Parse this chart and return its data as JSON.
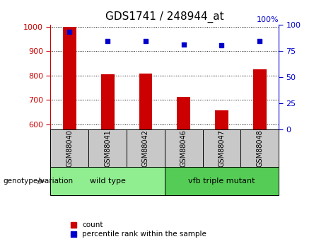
{
  "title": "GDS1741 / 248944_at",
  "categories": [
    "GSM88040",
    "GSM88041",
    "GSM88042",
    "GSM88046",
    "GSM88047",
    "GSM88048"
  ],
  "bar_values": [
    1000,
    805,
    808,
    714,
    657,
    826
  ],
  "scatter_values": [
    93,
    84,
    84,
    81,
    80,
    84
  ],
  "ylim_left": [
    580,
    1010
  ],
  "ylim_right": [
    0,
    100
  ],
  "yticks_left": [
    600,
    700,
    800,
    900,
    1000
  ],
  "yticks_right": [
    0,
    25,
    50,
    75,
    100
  ],
  "bar_color": "#cc0000",
  "scatter_color": "#0000cc",
  "label_box_color": "#c8c8c8",
  "left_tick_color": "#cc0000",
  "right_tick_color": "#0000cc",
  "legend_count_label": "count",
  "legend_pct_label": "percentile rank within the sample",
  "xlabel_label": "genotype/variation",
  "group1_name": "wild type",
  "group2_name": "vfb triple mutant",
  "group1_color": "#90ee90",
  "group2_color": "#55cc55",
  "title_fontsize": 11,
  "tick_fontsize": 8,
  "legend_fontsize": 7.5,
  "bar_width": 0.35
}
